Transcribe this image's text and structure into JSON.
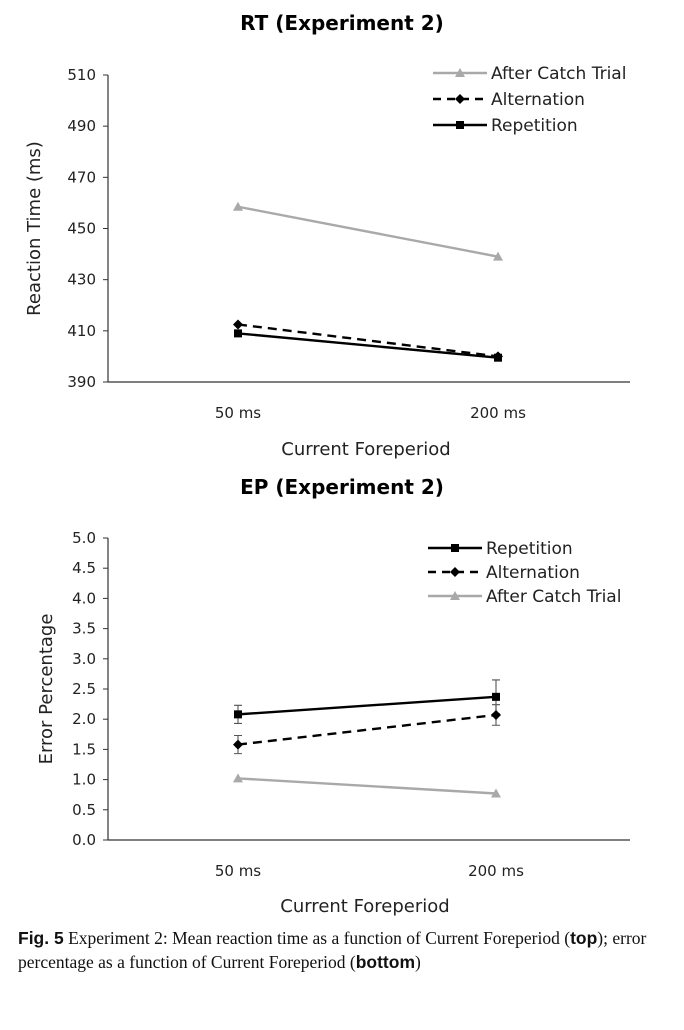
{
  "chart_data": [
    {
      "id": "rt",
      "type": "line",
      "title": "RT (Experiment 2)",
      "xlabel": "Current Foreperiod",
      "ylabel": "Reaction Time (ms)",
      "categories": [
        "50 ms",
        "200 ms"
      ],
      "ylim": [
        390,
        510
      ],
      "yticks": [
        "390",
        "410",
        "430",
        "450",
        "470",
        "490",
        "510"
      ],
      "grid": false,
      "legend_position": "top-right",
      "series": [
        {
          "name": "After Catch Trial",
          "values": [
            458.5,
            439
          ],
          "color": "#a9a9a9",
          "dash": false,
          "marker": "triangle"
        },
        {
          "name": "Alternation",
          "values": [
            412.5,
            400
          ],
          "color": "#000000",
          "dash": true,
          "marker": "diamond"
        },
        {
          "name": "Repetition",
          "values": [
            409,
            399.5
          ],
          "color": "#000000",
          "dash": false,
          "marker": "square"
        }
      ]
    },
    {
      "id": "ep",
      "type": "line",
      "title": "EP (Experiment 2)",
      "xlabel": "Current Foreperiod",
      "ylabel": "Error Percentage",
      "categories": [
        "50 ms",
        "200 ms"
      ],
      "ylim": [
        0,
        5
      ],
      "yticks": [
        "0.0",
        "0.5",
        "1.0",
        "1.5",
        "2.0",
        "2.5",
        "3.0",
        "3.5",
        "4.0",
        "4.5",
        "5.0"
      ],
      "grid": false,
      "legend_position": "top-right",
      "series": [
        {
          "name": "Repetition",
          "values": [
            2.08,
            2.37
          ],
          "errors": [
            0.15,
            0.28
          ],
          "color": "#000000",
          "dash": false,
          "marker": "square"
        },
        {
          "name": "Alternation",
          "values": [
            1.58,
            2.07
          ],
          "errors": [
            0.15,
            0.17
          ],
          "color": "#000000",
          "dash": true,
          "marker": "diamond"
        },
        {
          "name": "After Catch Trial",
          "values": [
            1.02,
            0.77
          ],
          "color": "#a9a9a9",
          "dash": false,
          "marker": "triangle"
        }
      ]
    }
  ],
  "caption": {
    "fig_label": "Fig. 5",
    "part1": "  Experiment 2: Mean reaction time as a function of Current Foreperiod (",
    "top_word": "top",
    "part2": "); error percentage as a function of Current Foreperiod (",
    "bottom_word": "bottom",
    "part3": ")"
  }
}
